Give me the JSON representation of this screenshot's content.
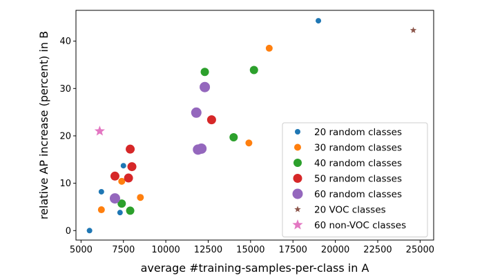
{
  "chart_data": {
    "type": "scatter",
    "title": "",
    "xlabel": "average #training-samples-per-class in A",
    "ylabel": "relative AP increase (percent) in B",
    "xlim": [
      4700,
      25800
    ],
    "ylim": [
      -2.0,
      46.5
    ],
    "x_ticks": [
      5000,
      7500,
      10000,
      12500,
      15000,
      17500,
      20000,
      22500,
      25000
    ],
    "x_tick_labels": [
      "5000",
      "7500",
      "10000",
      "12500",
      "15000",
      "17500",
      "20000",
      "22500",
      "25000"
    ],
    "y_ticks": [
      0,
      10,
      20,
      30,
      40
    ],
    "y_tick_labels": [
      "0",
      "10",
      "20",
      "30",
      "40"
    ],
    "grid": false,
    "legend_position": "lower-right",
    "series": [
      {
        "name": "20 random classes",
        "color": "#1f77b4",
        "marker": "circle",
        "size": "small",
        "points": [
          [
            5500,
            0
          ],
          [
            6200,
            8.2
          ],
          [
            7300,
            3.8
          ],
          [
            7500,
            13.7
          ],
          [
            19000,
            44.3
          ]
        ]
      },
      {
        "name": "30 random classes",
        "color": "#ff7f0e",
        "marker": "circle",
        "size": "medium-small",
        "points": [
          [
            6200,
            4.4
          ],
          [
            7400,
            10.4
          ],
          [
            8500,
            7.0
          ],
          [
            14900,
            18.5
          ],
          [
            16100,
            38.5
          ]
        ]
      },
      {
        "name": "40 random classes",
        "color": "#2ca02c",
        "marker": "circle",
        "size": "medium",
        "points": [
          [
            7400,
            5.7
          ],
          [
            7900,
            4.2
          ],
          [
            12300,
            33.5
          ],
          [
            14000,
            19.7
          ],
          [
            15200,
            33.9
          ]
        ]
      },
      {
        "name": "50 random classes",
        "color": "#d62728",
        "marker": "circle",
        "size": "large",
        "points": [
          [
            7000,
            11.5
          ],
          [
            7800,
            11.1
          ],
          [
            7900,
            17.2
          ],
          [
            8000,
            13.5
          ],
          [
            12700,
            23.4
          ]
        ]
      },
      {
        "name": "60 random classes",
        "color": "#9467bd",
        "marker": "circle",
        "size": "x-large",
        "points": [
          [
            7000,
            6.8
          ],
          [
            11800,
            24.9
          ],
          [
            11900,
            17.1
          ],
          [
            12100,
            17.3
          ],
          [
            12300,
            30.3
          ]
        ]
      },
      {
        "name": "20 VOC classes",
        "color": "#8c564b",
        "marker": "star",
        "size": "small",
        "points": [
          [
            24600,
            42.3
          ]
        ]
      },
      {
        "name": "60 non-VOC classes",
        "color": "#e377c2",
        "marker": "star",
        "size": "large",
        "points": [
          [
            6100,
            21.0
          ]
        ]
      }
    ]
  }
}
